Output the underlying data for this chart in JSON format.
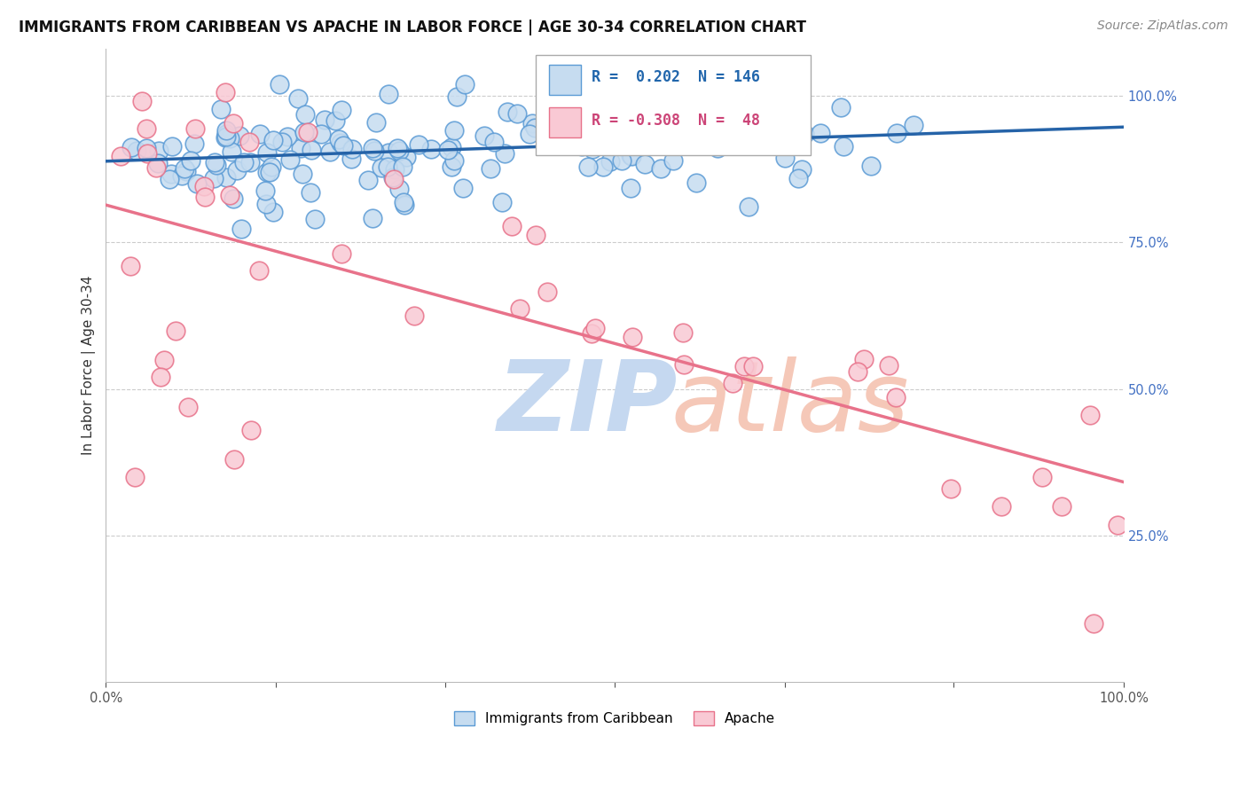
{
  "title": "IMMIGRANTS FROM CARIBBEAN VS APACHE IN LABOR FORCE | AGE 30-34 CORRELATION CHART",
  "source": "Source: ZipAtlas.com",
  "ylabel": "In Labor Force | Age 30-34",
  "blue_R": 0.202,
  "blue_N": 146,
  "pink_R": -0.308,
  "pink_N": 48,
  "blue_fill": "#c6dcf0",
  "blue_edge": "#5b9bd5",
  "pink_fill": "#f9c9d4",
  "pink_edge": "#e8728a",
  "blue_line": "#2563a8",
  "pink_line": "#e8728a",
  "legend_label_blue": "Immigrants from Caribbean",
  "legend_label_pink": "Apache",
  "watermark_zip_color": "#c5d8f0",
  "watermark_atlas_color": "#f5c8b8",
  "figsize": [
    14.06,
    8.92
  ],
  "dpi": 100,
  "title_fontsize": 12,
  "source_fontsize": 10
}
